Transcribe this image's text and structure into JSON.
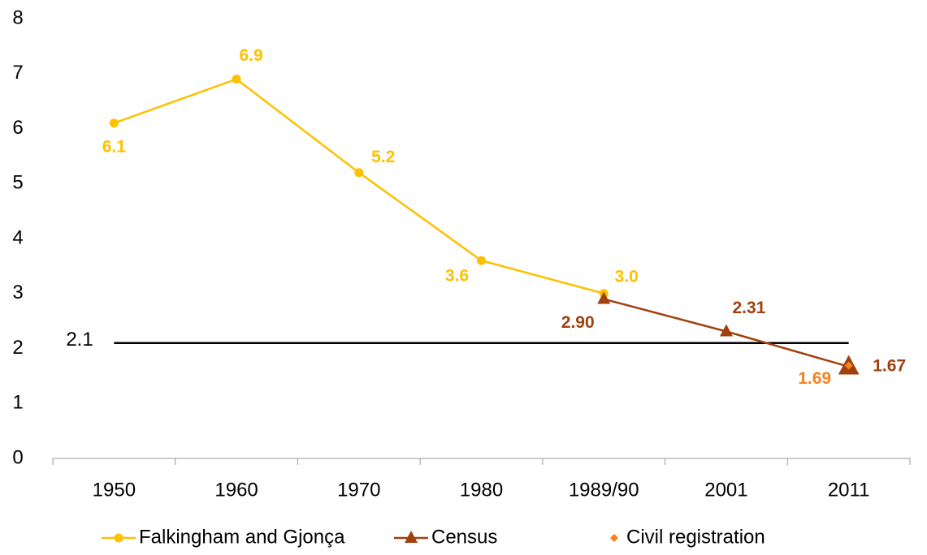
{
  "chart_data": {
    "type": "line",
    "categories": [
      "1950",
      "1960",
      "1970",
      "1980",
      "1989/90",
      "2001",
      "2011"
    ],
    "series": [
      {
        "name": "Falkingham and Gjonça",
        "color": "#FFC000",
        "marker": "circle",
        "values": [
          6.1,
          6.9,
          5.2,
          3.6,
          3.0,
          null,
          null
        ],
        "value_labels": [
          "6.1",
          "6.9",
          "5.2",
          "3.6",
          "3.0",
          null,
          null
        ]
      },
      {
        "name": "Census",
        "color": "#A0410D",
        "marker": "triangle",
        "values": [
          null,
          null,
          null,
          null,
          2.9,
          2.31,
          1.67
        ],
        "value_labels": [
          null,
          null,
          null,
          null,
          "2.90",
          "2.31",
          "1.67"
        ]
      },
      {
        "name": "Civil registration",
        "color": "#F4821F",
        "marker": "diamond",
        "values": [
          null,
          null,
          null,
          null,
          null,
          null,
          1.69
        ],
        "value_labels": [
          null,
          null,
          null,
          null,
          null,
          null,
          "1.69"
        ]
      }
    ],
    "reference_line": 2.1,
    "ylim": [
      0,
      8
    ],
    "yticks": [
      0,
      1,
      2,
      3,
      4,
      5,
      6,
      7,
      8
    ],
    "grid": false,
    "legend": "bottom"
  }
}
